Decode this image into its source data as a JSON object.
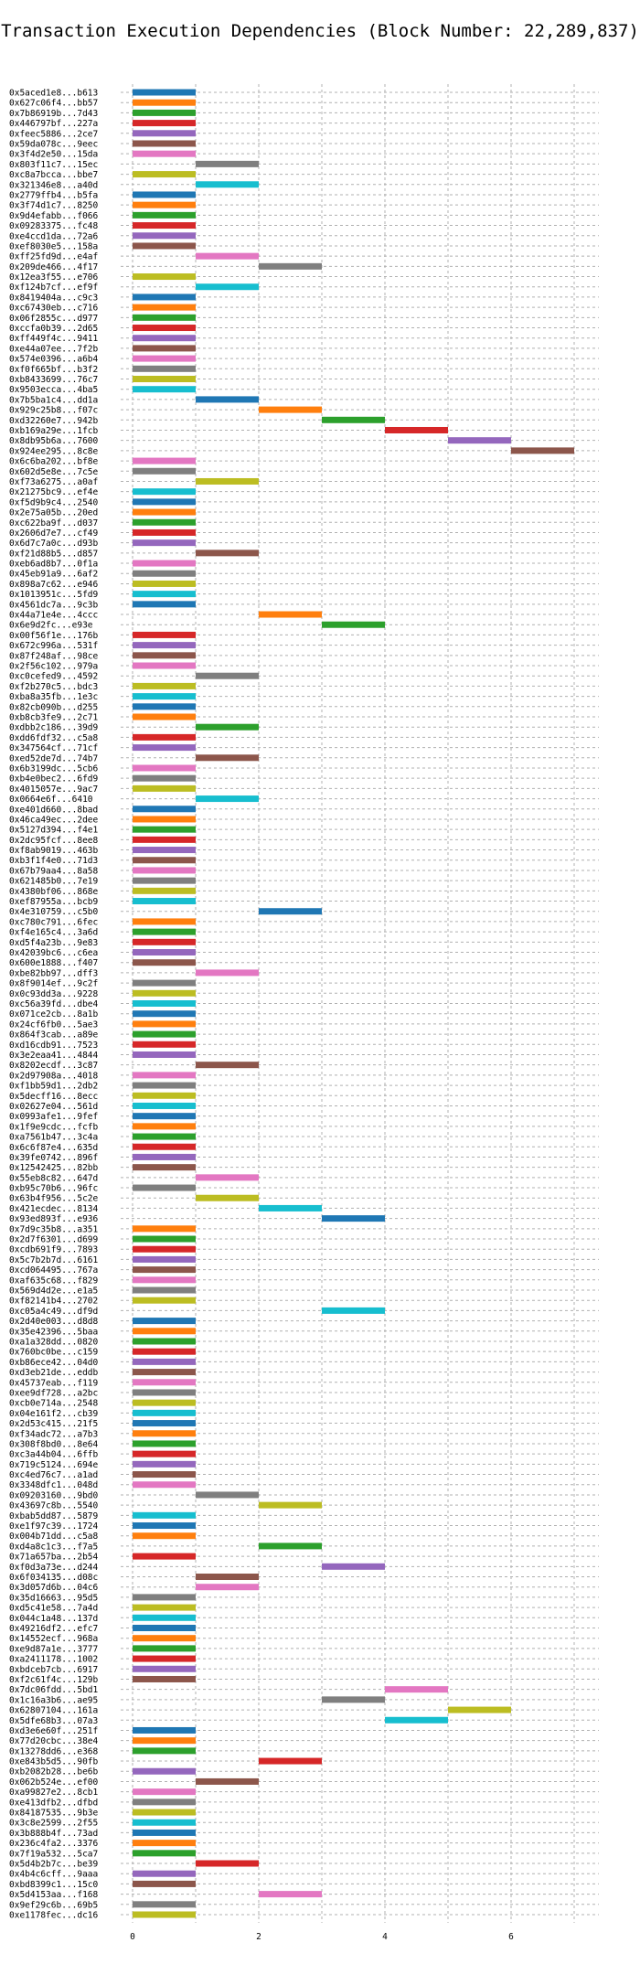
{
  "chart_data": {
    "type": "bar",
    "orientation": "horizontal",
    "title": "Transaction Execution Dependencies (Block Number: 22,289,837)",
    "xlabel": "",
    "ylabel": "",
    "xlim": [
      -0.2,
      7.4
    ],
    "xticks": [
      0,
      2,
      4,
      6
    ],
    "grid": true,
    "palette": [
      "#1f77b4",
      "#ff7f0e",
      "#2ca02c",
      "#d62728",
      "#9467bd",
      "#8c564b",
      "#e377c2",
      "#7f7f7f",
      "#bcbd22",
      "#17becf"
    ],
    "bars": [
      [
        "0x5aced1e8...b613",
        0,
        0
      ],
      [
        "0x627c06f4...bb57",
        0,
        1
      ],
      [
        "0x7b86919b...7d43",
        0,
        2
      ],
      [
        "0x446797bf...227a",
        0,
        3
      ],
      [
        "0xfeec5886...2ce7",
        0,
        4
      ],
      [
        "0x59da078c...9eec",
        0,
        5
      ],
      [
        "0x3f4d2e50...15da",
        0,
        6
      ],
      [
        "0x803f11c7...15ec",
        1,
        7
      ],
      [
        "0xc8a7bcca...bbe7",
        0,
        8
      ],
      [
        "0x321346e8...a40d",
        1,
        9
      ],
      [
        "0x2779ffb4...b5fa",
        0,
        0
      ],
      [
        "0x3f74d1c7...8250",
        0,
        1
      ],
      [
        "0x9d4efabb...f066",
        0,
        2
      ],
      [
        "0x09283375...fc48",
        0,
        3
      ],
      [
        "0xe4ccd1da...72a6",
        0,
        4
      ],
      [
        "0xef8030e5...158a",
        0,
        5
      ],
      [
        "0xff25fd9d...e4af",
        1,
        6
      ],
      [
        "0x209de466...4f17",
        2,
        7
      ],
      [
        "0x12ea3f55...e706",
        0,
        8
      ],
      [
        "0xf124b7cf...ef9f",
        1,
        9
      ],
      [
        "0x8419404a...c9c3",
        0,
        0
      ],
      [
        "0xc67430eb...c716",
        0,
        1
      ],
      [
        "0x06f2855c...d977",
        0,
        2
      ],
      [
        "0xccfa0b39...2d65",
        0,
        3
      ],
      [
        "0xff449f4c...9411",
        0,
        4
      ],
      [
        "0xe44a07ee...7f2b",
        0,
        5
      ],
      [
        "0x574e0396...a6b4",
        0,
        6
      ],
      [
        "0xf0f665bf...b3f2",
        0,
        7
      ],
      [
        "0xb8433699...76c7",
        0,
        8
      ],
      [
        "0x9503ecca...4ba5",
        0,
        9
      ],
      [
        "0x7b5ba1c4...dd1a",
        1,
        0
      ],
      [
        "0x929c25b8...f07c",
        2,
        1
      ],
      [
        "0xd32260e7...942b",
        3,
        2
      ],
      [
        "0xb169a29e...1fcb",
        4,
        3
      ],
      [
        "0x8db95b6a...7600",
        5,
        4
      ],
      [
        "0x924ee295...8c8e",
        6,
        5
      ],
      [
        "0x6c6ba202...bf8e",
        0,
        6
      ],
      [
        "0x602d5e8e...7c5e",
        0,
        7
      ],
      [
        "0xf73a6275...a0af",
        1,
        8
      ],
      [
        "0x21275bc9...ef4e",
        0,
        9
      ],
      [
        "0xf5d9b9c4...2540",
        0,
        0
      ],
      [
        "0x2e75a05b...20ed",
        0,
        1
      ],
      [
        "0xc622ba9f...d037",
        0,
        2
      ],
      [
        "0x2606d7e7...cf49",
        0,
        3
      ],
      [
        "0x6d7c7a0c...d93b",
        0,
        4
      ],
      [
        "0xf21d88b5...d857",
        1,
        5
      ],
      [
        "0xeb6ad8b7...0f1a",
        0,
        6
      ],
      [
        "0x45eb91a9...6af2",
        0,
        7
      ],
      [
        "0x898a7c62...e946",
        0,
        8
      ],
      [
        "0x1013951c...5fd9",
        0,
        9
      ],
      [
        "0x4561dc7a...9c3b",
        0,
        0
      ],
      [
        "0x44a71e4e...4ccc",
        2,
        1
      ],
      [
        "0x6e9d2fc...e93e",
        3,
        2
      ],
      [
        "0x00f56f1e...176b",
        0,
        3
      ],
      [
        "0x672c996a...531f",
        0,
        4
      ],
      [
        "0x87f248af...98ce",
        0,
        5
      ],
      [
        "0x2f56c102...979a",
        0,
        6
      ],
      [
        "0xc0cefed9...4592",
        1,
        7
      ],
      [
        "0xf2b270c5...bdc3",
        0,
        8
      ],
      [
        "0xba8a35fb...1e3c",
        0,
        9
      ],
      [
        "0x82cb090b...d255",
        0,
        0
      ],
      [
        "0xb8cb3fe9...2c71",
        0,
        1
      ],
      [
        "0xdbb2c186...39d9",
        1,
        2
      ],
      [
        "0xdd6fdf32...c5a8",
        0,
        3
      ],
      [
        "0x347564cf...71cf",
        0,
        4
      ],
      [
        "0xed52de7d...74b7",
        1,
        5
      ],
      [
        "0x6b3199dc...5cb6",
        0,
        6
      ],
      [
        "0xb4e0bec2...6fd9",
        0,
        7
      ],
      [
        "0x4015057e...9ac7",
        0,
        8
      ],
      [
        "0x0664e6f...6410",
        1,
        9
      ],
      [
        "0xe401d660...8bad",
        0,
        0
      ],
      [
        "0x46ca49ec...2dee",
        0,
        1
      ],
      [
        "0x5127d394...f4e1",
        0,
        2
      ],
      [
        "0x2dc95fcf...8ee8",
        0,
        3
      ],
      [
        "0xf8ab9019...463b",
        0,
        4
      ],
      [
        "0xb3f1f4e0...71d3",
        0,
        5
      ],
      [
        "0x67b79aa4...8a58",
        0,
        6
      ],
      [
        "0x621485b0...7e19",
        0,
        7
      ],
      [
        "0x4380bf06...868e",
        0,
        8
      ],
      [
        "0xef87955a...bcb9",
        0,
        9
      ],
      [
        "0x4e310759...c5b0",
        2,
        0
      ],
      [
        "0xc780c791...6fec",
        0,
        1
      ],
      [
        "0xf4e165c4...3a6d",
        0,
        2
      ],
      [
        "0xd5f4a23b...9e83",
        0,
        3
      ],
      [
        "0x42039bc6...c6ea",
        0,
        4
      ],
      [
        "0x600e1888...f407",
        0,
        5
      ],
      [
        "0xbe82bb97...dff3",
        1,
        6
      ],
      [
        "0x8f9014ef...9c2f",
        0,
        7
      ],
      [
        "0x0c93dd3a...9228",
        0,
        8
      ],
      [
        "0xc56a39fd...dbe4",
        0,
        9
      ],
      [
        "0x071ce2cb...8a1b",
        0,
        0
      ],
      [
        "0x24cf6fb0...5ae3",
        0,
        1
      ],
      [
        "0x864f3cab...a89e",
        0,
        2
      ],
      [
        "0xd16cdb91...7523",
        0,
        3
      ],
      [
        "0x3e2eaa41...4844",
        0,
        4
      ],
      [
        "0x8202ecdf...3c87",
        1,
        5
      ],
      [
        "0x2d97908a...4018",
        0,
        6
      ],
      [
        "0xf1bb59d1...2db2",
        0,
        7
      ],
      [
        "0x5decff16...8ecc",
        0,
        8
      ],
      [
        "0x02627e04...561d",
        0,
        9
      ],
      [
        "0x0993afe1...9fef",
        0,
        0
      ],
      [
        "0x1f9e9cdc...fcfb",
        0,
        1
      ],
      [
        "0xa7561b47...3c4a",
        0,
        2
      ],
      [
        "0x6c6f87e4...635d",
        0,
        3
      ],
      [
        "0x39fe0742...896f",
        0,
        4
      ],
      [
        "0x12542425...82bb",
        0,
        5
      ],
      [
        "0x55eb8c82...647d",
        1,
        6
      ],
      [
        "0xb95c70b6...96fc",
        0,
        7
      ],
      [
        "0x63b4f956...5c2e",
        1,
        8
      ],
      [
        "0x421ecdec...8134",
        2,
        9
      ],
      [
        "0x93ed893f...e936",
        3,
        0
      ],
      [
        "0x7d9c35b8...a351",
        0,
        1
      ],
      [
        "0x2d7f6301...d699",
        0,
        2
      ],
      [
        "0xcdb691f9...7893",
        0,
        3
      ],
      [
        "0x5c7b2b7d...6161",
        0,
        4
      ],
      [
        "0xcd064495...767a",
        0,
        5
      ],
      [
        "0xaf635c68...f829",
        0,
        6
      ],
      [
        "0x569d4d2e...e1a5",
        0,
        7
      ],
      [
        "0xf82141b4...2702",
        0,
        8
      ],
      [
        "0xc05a4c49...df9d",
        3,
        9
      ],
      [
        "0x2d40e003...d8d8",
        0,
        0
      ],
      [
        "0x35e42396...5baa",
        0,
        1
      ],
      [
        "0xa1a328dd...0820",
        0,
        2
      ],
      [
        "0x760bc0be...c159",
        0,
        3
      ],
      [
        "0xb86ece42...04d0",
        0,
        4
      ],
      [
        "0xd3eb21de...eddb",
        0,
        5
      ],
      [
        "0x45737eab...f119",
        0,
        6
      ],
      [
        "0xee9df728...a2bc",
        0,
        7
      ],
      [
        "0xcb0e714a...2548",
        0,
        8
      ],
      [
        "0x04e161f2...cb39",
        0,
        9
      ],
      [
        "0x2d53c415...21f5",
        0,
        0
      ],
      [
        "0xf34adc72...a7b3",
        0,
        1
      ],
      [
        "0x308f8bd0...8e64",
        0,
        2
      ],
      [
        "0xc3a44b04...6ffb",
        0,
        3
      ],
      [
        "0x719c5124...694e",
        0,
        4
      ],
      [
        "0xc4ed76c7...a1ad",
        0,
        5
      ],
      [
        "0x3348dfc1...048d",
        0,
        6
      ],
      [
        "0x09203160...9bd0",
        1,
        7
      ],
      [
        "0x43697c8b...5540",
        2,
        8
      ],
      [
        "0xbab5dd87...5879",
        0,
        9
      ],
      [
        "0xe1f97c39...1724",
        0,
        0
      ],
      [
        "0x004b71dd...c5a8",
        0,
        1
      ],
      [
        "0xd4a8c1c3...f7a5",
        2,
        2
      ],
      [
        "0x71a657ba...2b54",
        0,
        3
      ],
      [
        "0xf0d3a73e...d244",
        3,
        4
      ],
      [
        "0x6f034135...d08c",
        1,
        5
      ],
      [
        "0x3d057d6b...04c6",
        1,
        6
      ],
      [
        "0x35d16663...95d5",
        0,
        7
      ],
      [
        "0xd5c41e58...7a4d",
        0,
        8
      ],
      [
        "0x044c1a48...137d",
        0,
        9
      ],
      [
        "0x49216df2...efc7",
        0,
        0
      ],
      [
        "0x14552ecf...968a",
        0,
        1
      ],
      [
        "0xe9d87a1e...3777",
        0,
        2
      ],
      [
        "0xa2411178...1002",
        0,
        3
      ],
      [
        "0xbdceb7cb...6917",
        0,
        4
      ],
      [
        "0xf2c61f4c...129b",
        0,
        5
      ],
      [
        "0x7dc06fdd...5bd1",
        4,
        6
      ],
      [
        "0x1c16a3b6...ae95",
        3,
        7
      ],
      [
        "0x62807104...161a",
        5,
        8
      ],
      [
        "0x5dfe68b3...07a3",
        4,
        9
      ],
      [
        "0xd3e6e60f...251f",
        0,
        0
      ],
      [
        "0x77d20cbc...38e4",
        0,
        1
      ],
      [
        "0x13278dd6...e368",
        0,
        2
      ],
      [
        "0xe843b5d5...90fb",
        2,
        3
      ],
      [
        "0xb2082b28...be6b",
        0,
        4
      ],
      [
        "0x062b524e...ef00",
        1,
        5
      ],
      [
        "0xa99827e2...8cb1",
        0,
        6
      ],
      [
        "0xe413dfb2...dfbd",
        0,
        7
      ],
      [
        "0x84187535...9b3e",
        0,
        8
      ],
      [
        "0x3c8e2599...2f55",
        0,
        9
      ],
      [
        "0x3b888b4f...73ad",
        0,
        0
      ],
      [
        "0x236c4fa2...3376",
        0,
        1
      ],
      [
        "0x7f19a532...5ca7",
        0,
        2
      ],
      [
        "0x5d4b2b7c...be39",
        1,
        3
      ],
      [
        "0x4b4c6cff...9aaa",
        0,
        4
      ],
      [
        "0xbd8399c1...15c0",
        0,
        5
      ],
      [
        "0x5d4153aa...f168",
        2,
        6
      ],
      [
        "0x9ef29c6b...69b5",
        0,
        7
      ],
      [
        "0xe1178fec...dc16",
        0,
        8
      ]
    ]
  }
}
